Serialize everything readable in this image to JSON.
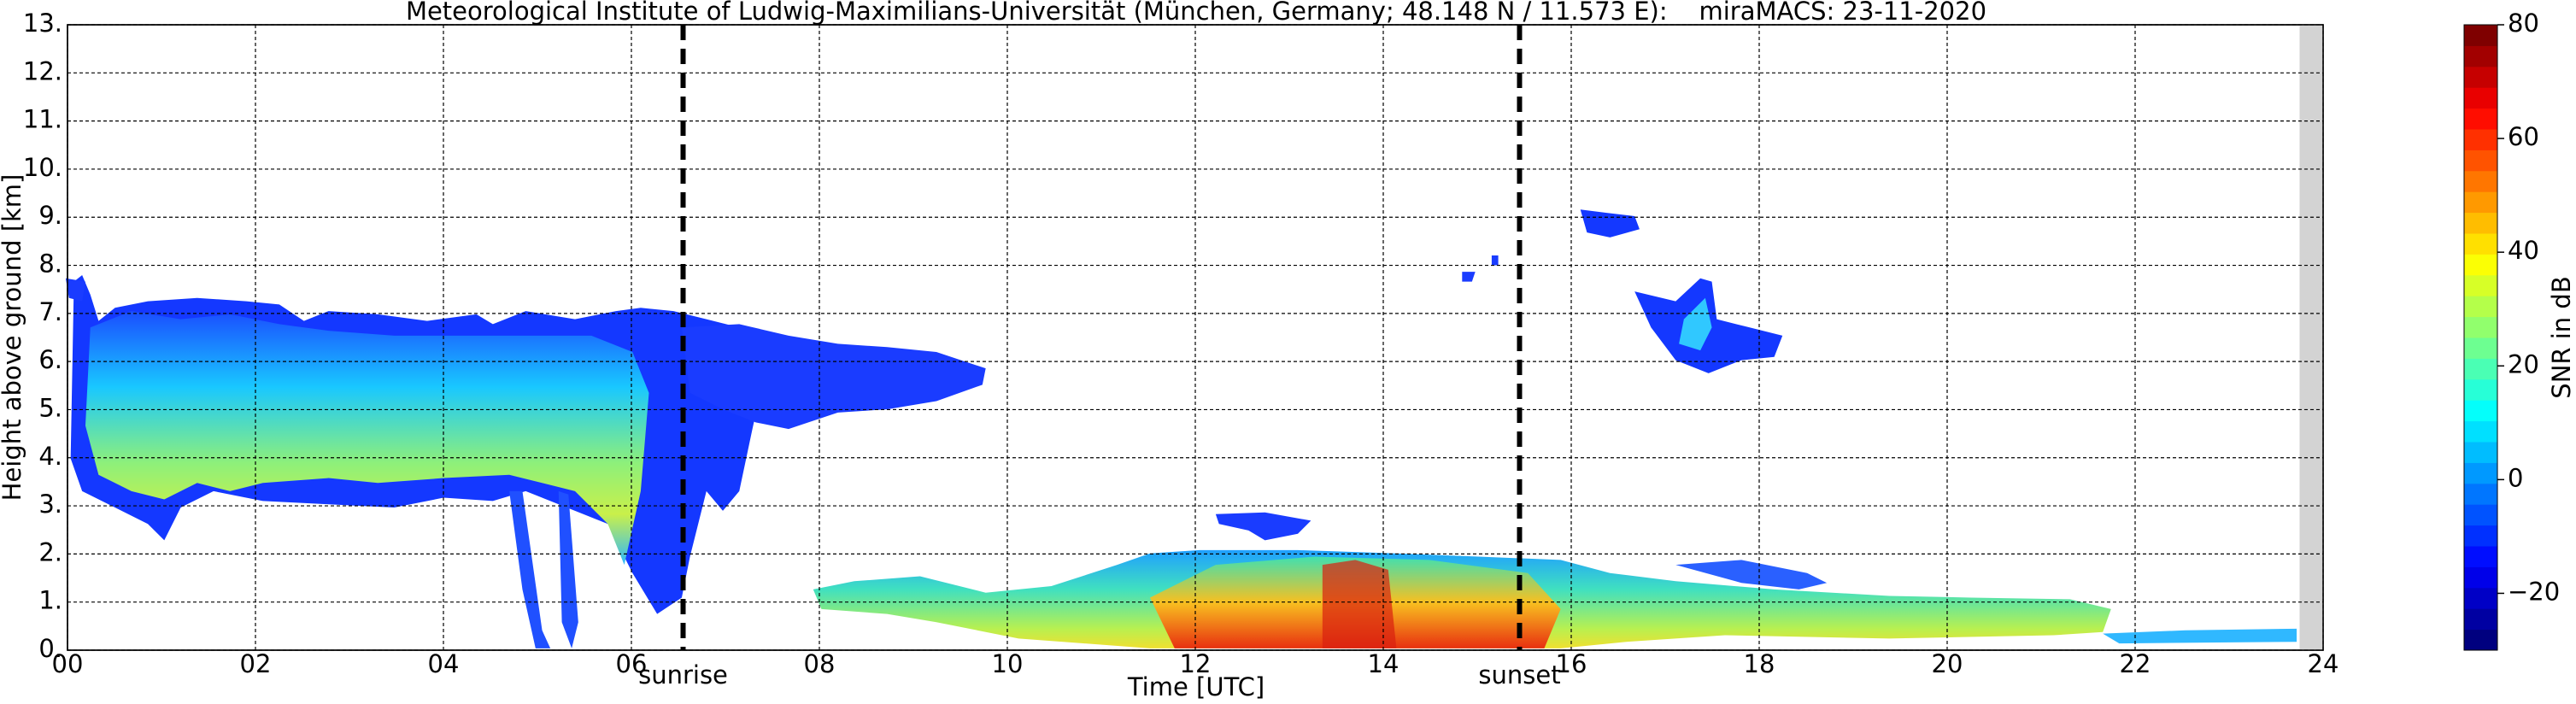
{
  "chart_data": {
    "type": "heatmap",
    "title": "Meteorological Institute of Ludwig-Maximilians-Universität (München, Germany; 48.148 N / 11.573 E):    miraMACS: 23-11-2020",
    "x_label": "Time [UTC]",
    "y_label": "Height above ground [km]",
    "xlim": [
      0,
      24
    ],
    "xticks": [
      {
        "value": 0,
        "label": "00"
      },
      {
        "value": 2,
        "label": "02"
      },
      {
        "value": 4,
        "label": "04"
      },
      {
        "value": 6,
        "label": "06"
      },
      {
        "value": 8,
        "label": "08"
      },
      10,
      12,
      14,
      16,
      18,
      20,
      22,
      24
    ],
    "ylim": [
      0,
      13
    ],
    "yticks": [
      {
        "value": 0,
        "label": "0."
      },
      {
        "value": 1,
        "label": "1."
      },
      {
        "value": 2,
        "label": "2."
      },
      {
        "value": 3,
        "label": "3."
      },
      {
        "value": 4,
        "label": "4."
      },
      {
        "value": 5,
        "label": "5."
      },
      {
        "value": 6,
        "label": "6."
      },
      {
        "value": 7,
        "label": "7."
      },
      {
        "value": 8,
        "label": "8."
      },
      {
        "value": 9,
        "label": "9."
      },
      {
        "value": 10,
        "label": "10."
      },
      {
        "value": 11,
        "label": "11."
      },
      {
        "value": 12,
        "label": "12."
      },
      {
        "value": 13,
        "label": "13."
      }
    ],
    "grid": true,
    "colorbar": {
      "label": "SNR in dB",
      "colormap": "jet",
      "clim": [
        -30,
        80
      ],
      "ticks": [
        {
          "value": -20,
          "label": "−20"
        },
        0,
        20,
        40,
        60,
        80
      ]
    },
    "markers": [
      {
        "label": "sunrise",
        "x": 6.55
      },
      {
        "label": "sunset",
        "x": 15.45
      }
    ],
    "no_data_from": 23.75
  }
}
